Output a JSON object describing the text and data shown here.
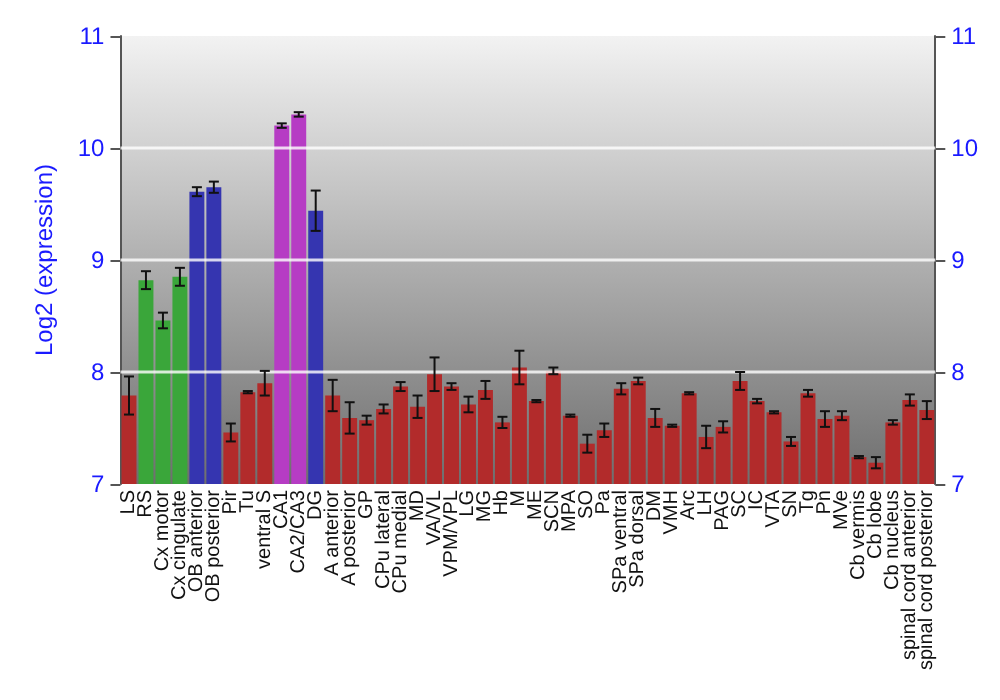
{
  "chart_data": {
    "type": "bar",
    "ylabel": "Log2 (expression)",
    "categories": [
      "LS",
      "RS",
      "Cx motor",
      "Cx cingulate",
      "OB anterior",
      "OB posterior",
      "Pir",
      "Tu",
      "ventral S",
      "CA1",
      "CA2/CA3",
      "DG",
      "A anterior",
      "A posterior",
      "GP",
      "CPu lateral",
      "CPu medial",
      "MD",
      "VA/VL",
      "VPM/VPL",
      "LG",
      "MG",
      "Hb",
      "M",
      "ME",
      "SCN",
      "MPA",
      "SO",
      "Pa",
      "SPa ventral",
      "SPa dorsal",
      "DM",
      "VMH",
      "Arc",
      "LH",
      "PAG",
      "SC",
      "IC",
      "VTA",
      "SN",
      "Tg",
      "Pn",
      "MVe",
      "Cb vermis",
      "Cb lobe",
      "Cb nucleus",
      "spinal cord anterior",
      "spinal cord posterior"
    ],
    "values": [
      7.79,
      8.82,
      8.46,
      8.85,
      9.61,
      9.65,
      7.46,
      7.82,
      7.9,
      10.2,
      10.3,
      9.44,
      7.79,
      7.59,
      7.57,
      7.67,
      7.87,
      7.69,
      7.98,
      7.87,
      7.71,
      7.84,
      7.55,
      8.04,
      7.74,
      8.01,
      7.61,
      7.36,
      7.48,
      7.85,
      7.92,
      7.59,
      7.52,
      7.81,
      7.42,
      7.51,
      7.92,
      7.74,
      7.64,
      7.38,
      7.81,
      7.58,
      7.61,
      7.24,
      7.19,
      7.55,
      7.75,
      7.66
    ],
    "errors": [
      0.17,
      0.08,
      0.07,
      0.08,
      0.04,
      0.05,
      0.08,
      0.01,
      0.11,
      0.02,
      0.02,
      0.18,
      0.14,
      0.14,
      0.04,
      0.04,
      0.04,
      0.1,
      0.15,
      0.03,
      0.07,
      0.08,
      0.05,
      0.15,
      0.01,
      0.03,
      0.01,
      0.08,
      0.06,
      0.05,
      0.03,
      0.08,
      0.01,
      0.01,
      0.1,
      0.05,
      0.08,
      0.02,
      0.01,
      0.04,
      0.03,
      0.07,
      0.04,
      0.01,
      0.05,
      0.02,
      0.05,
      0.08
    ],
    "colors": [
      "#b22b2b",
      "#3aa63a",
      "#3aa63a",
      "#3aa63a",
      "#3535b0",
      "#3535b0",
      "#b22b2b",
      "#b22b2b",
      "#b22b2b",
      "#b63cc4",
      "#b63cc4",
      "#3535b0",
      "#b22b2b",
      "#b22b2b",
      "#b22b2b",
      "#b22b2b",
      "#b22b2b",
      "#b22b2b",
      "#b22b2b",
      "#b22b2b",
      "#b22b2b",
      "#b22b2b",
      "#b22b2b",
      "#b22b2b",
      "#b22b2b",
      "#b22b2b",
      "#b22b2b",
      "#b22b2b",
      "#b22b2b",
      "#b22b2b",
      "#b22b2b",
      "#b22b2b",
      "#b22b2b",
      "#b22b2b",
      "#b22b2b",
      "#b22b2b",
      "#b22b2b",
      "#b22b2b",
      "#b22b2b",
      "#b22b2b",
      "#b22b2b",
      "#b22b2b",
      "#b22b2b",
      "#b22b2b",
      "#b22b2b",
      "#b22b2b",
      "#b22b2b",
      "#b22b2b"
    ],
    "ylim": [
      7,
      11
    ],
    "yticks": [
      7,
      8,
      9,
      10,
      11
    ],
    "y2lim": [
      7,
      11
    ],
    "y2ticks": [
      7,
      8,
      9,
      10,
      11
    ],
    "grid": "y"
  }
}
